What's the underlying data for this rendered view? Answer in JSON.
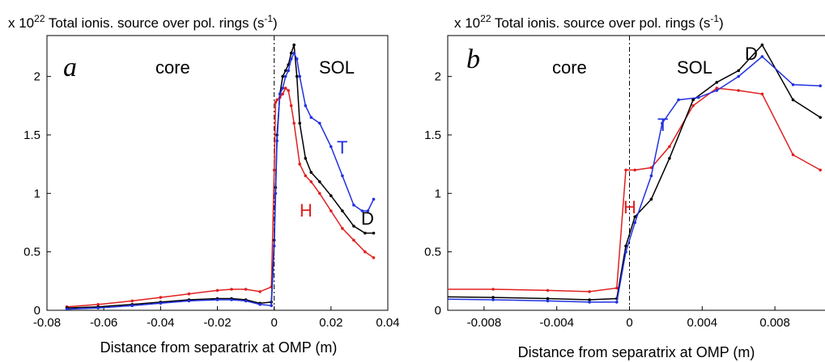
{
  "chart_data": [
    {
      "type": "line",
      "title_prefix": "x 10",
      "title_exp": "22",
      "title_main": " Total ionis. source over pol. rings (s",
      "title_unit_exp": "-1",
      "title_suffix": ")",
      "panel_letter": "a",
      "xlabel": "Distance from separatrix at OMP (m)",
      "ylabel": "",
      "xlim": [
        -0.08,
        0.04
      ],
      "ylim": [
        0,
        2.35
      ],
      "xticks": [
        "-0.08",
        "-0.06",
        "-0.04",
        "-0.02",
        "0",
        "0.02",
        "0.04"
      ],
      "yticks": [
        "0",
        "0.5",
        "1",
        "1.5",
        "2"
      ],
      "region_core": "core",
      "region_sol": "SOL",
      "separatrix_x": 0,
      "grid": false,
      "series": [
        {
          "name": "H",
          "color": "#e02020",
          "x": [
            -0.073,
            -0.062,
            -0.05,
            -0.04,
            -0.03,
            -0.02,
            -0.015,
            -0.01,
            -0.005,
            -0.001,
            0,
            0.0005,
            0.001,
            0.002,
            0.003,
            0.004,
            0.005,
            0.006,
            0.007,
            0.009,
            0.011,
            0.013,
            0.016,
            0.02,
            0.024,
            0.028,
            0.032,
            0.035
          ],
          "y": [
            0.03,
            0.05,
            0.08,
            0.11,
            0.14,
            0.17,
            0.18,
            0.18,
            0.16,
            0.2,
            1.2,
            1.78,
            1.8,
            1.82,
            1.85,
            1.9,
            1.88,
            1.75,
            1.6,
            1.25,
            1.15,
            1.1,
            1.0,
            0.85,
            0.7,
            0.6,
            0.5,
            0.45
          ]
        },
        {
          "name": "D",
          "color": "#000000",
          "x": [
            -0.073,
            -0.062,
            -0.05,
            -0.04,
            -0.03,
            -0.02,
            -0.015,
            -0.01,
            -0.005,
            -0.001,
            0,
            0.0005,
            0.001,
            0.002,
            0.003,
            0.004,
            0.005,
            0.006,
            0.007,
            0.008,
            0.009,
            0.011,
            0.013,
            0.016,
            0.02,
            0.024,
            0.028,
            0.032,
            0.035
          ],
          "y": [
            0.02,
            0.03,
            0.05,
            0.07,
            0.09,
            0.1,
            0.1,
            0.09,
            0.06,
            0.07,
            0.6,
            1.05,
            1.5,
            1.85,
            2.0,
            2.05,
            2.1,
            2.2,
            2.27,
            2.0,
            1.6,
            1.3,
            1.18,
            1.1,
            0.98,
            0.85,
            0.72,
            0.66,
            0.66
          ]
        },
        {
          "name": "T",
          "color": "#2030e0",
          "x": [
            -0.073,
            -0.062,
            -0.05,
            -0.04,
            -0.03,
            -0.02,
            -0.015,
            -0.01,
            -0.005,
            -0.001,
            0,
            0.0005,
            0.001,
            0.002,
            0.003,
            0.004,
            0.005,
            0.006,
            0.007,
            0.008,
            0.009,
            0.011,
            0.013,
            0.016,
            0.02,
            0.024,
            0.028,
            0.031,
            0.033,
            0.035
          ],
          "y": [
            0.01,
            0.02,
            0.04,
            0.06,
            0.08,
            0.09,
            0.09,
            0.08,
            0.05,
            0.04,
            0.55,
            1.0,
            1.45,
            1.85,
            1.9,
            2.0,
            2.05,
            2.15,
            2.2,
            2.15,
            2.0,
            1.75,
            1.65,
            1.6,
            1.4,
            1.15,
            0.9,
            0.85,
            0.85,
            0.95
          ]
        }
      ],
      "series_labels": {
        "H": "H",
        "D": "D",
        "T": "T"
      }
    },
    {
      "type": "line",
      "title_prefix": "x 10",
      "title_exp": "22",
      "title_main": " Total ionis. source over pol. rings (s",
      "title_unit_exp": "-1",
      "title_suffix": ")",
      "panel_letter": "b",
      "xlabel": "Distance from separatrix at OMP (m)",
      "ylabel": "",
      "xlim": [
        -0.01,
        0.01
      ],
      "ylim": [
        0,
        2.35
      ],
      "xticks": [
        "-0.008",
        "-0.004",
        "0",
        "0.004",
        "0.008"
      ],
      "xtick_values": [
        -0.008,
        -0.004,
        0,
        0.004,
        0.008
      ],
      "yticks": [
        "0",
        "0.5",
        "1",
        "1.5",
        "2"
      ],
      "region_core": "core",
      "region_sol": "SOL",
      "separatrix_x": 0,
      "grid": false,
      "series": [
        {
          "name": "H",
          "color": "#e02020",
          "x": [
            -0.0125,
            -0.0075,
            -0.0045,
            -0.0022,
            -0.0007,
            -0.0002,
            0.0003,
            0.0012,
            0.0022,
            0.0035,
            0.0048,
            0.006,
            0.0073,
            0.009,
            0.0105
          ],
          "y": [
            0.18,
            0.18,
            0.17,
            0.16,
            0.19,
            1.2,
            1.2,
            1.22,
            1.4,
            1.75,
            1.9,
            1.88,
            1.85,
            1.33,
            1.2
          ]
        },
        {
          "name": "D",
          "color": "#000000",
          "x": [
            -0.0125,
            -0.0075,
            -0.0045,
            -0.0022,
            -0.0007,
            -0.0002,
            0.0003,
            0.0012,
            0.0022,
            0.0035,
            0.0048,
            0.006,
            0.0073,
            0.009,
            0.0105
          ],
          "y": [
            0.12,
            0.11,
            0.1,
            0.09,
            0.1,
            0.55,
            0.8,
            0.95,
            1.3,
            1.8,
            1.95,
            2.05,
            2.27,
            1.8,
            1.65
          ]
        },
        {
          "name": "T",
          "color": "#2030e0",
          "x": [
            -0.0125,
            -0.0075,
            -0.0045,
            -0.0022,
            -0.0007,
            -0.0002,
            0.0003,
            0.0012,
            0.0018,
            0.0027,
            0.0038,
            0.0048,
            0.006,
            0.0073,
            0.009,
            0.0105
          ],
          "y": [
            0.1,
            0.09,
            0.08,
            0.07,
            0.07,
            0.5,
            0.75,
            1.15,
            1.6,
            1.8,
            1.82,
            1.88,
            2.0,
            2.17,
            1.93,
            1.92
          ]
        }
      ],
      "series_labels": {
        "H": "H",
        "D": "D",
        "T": "T"
      }
    }
  ]
}
